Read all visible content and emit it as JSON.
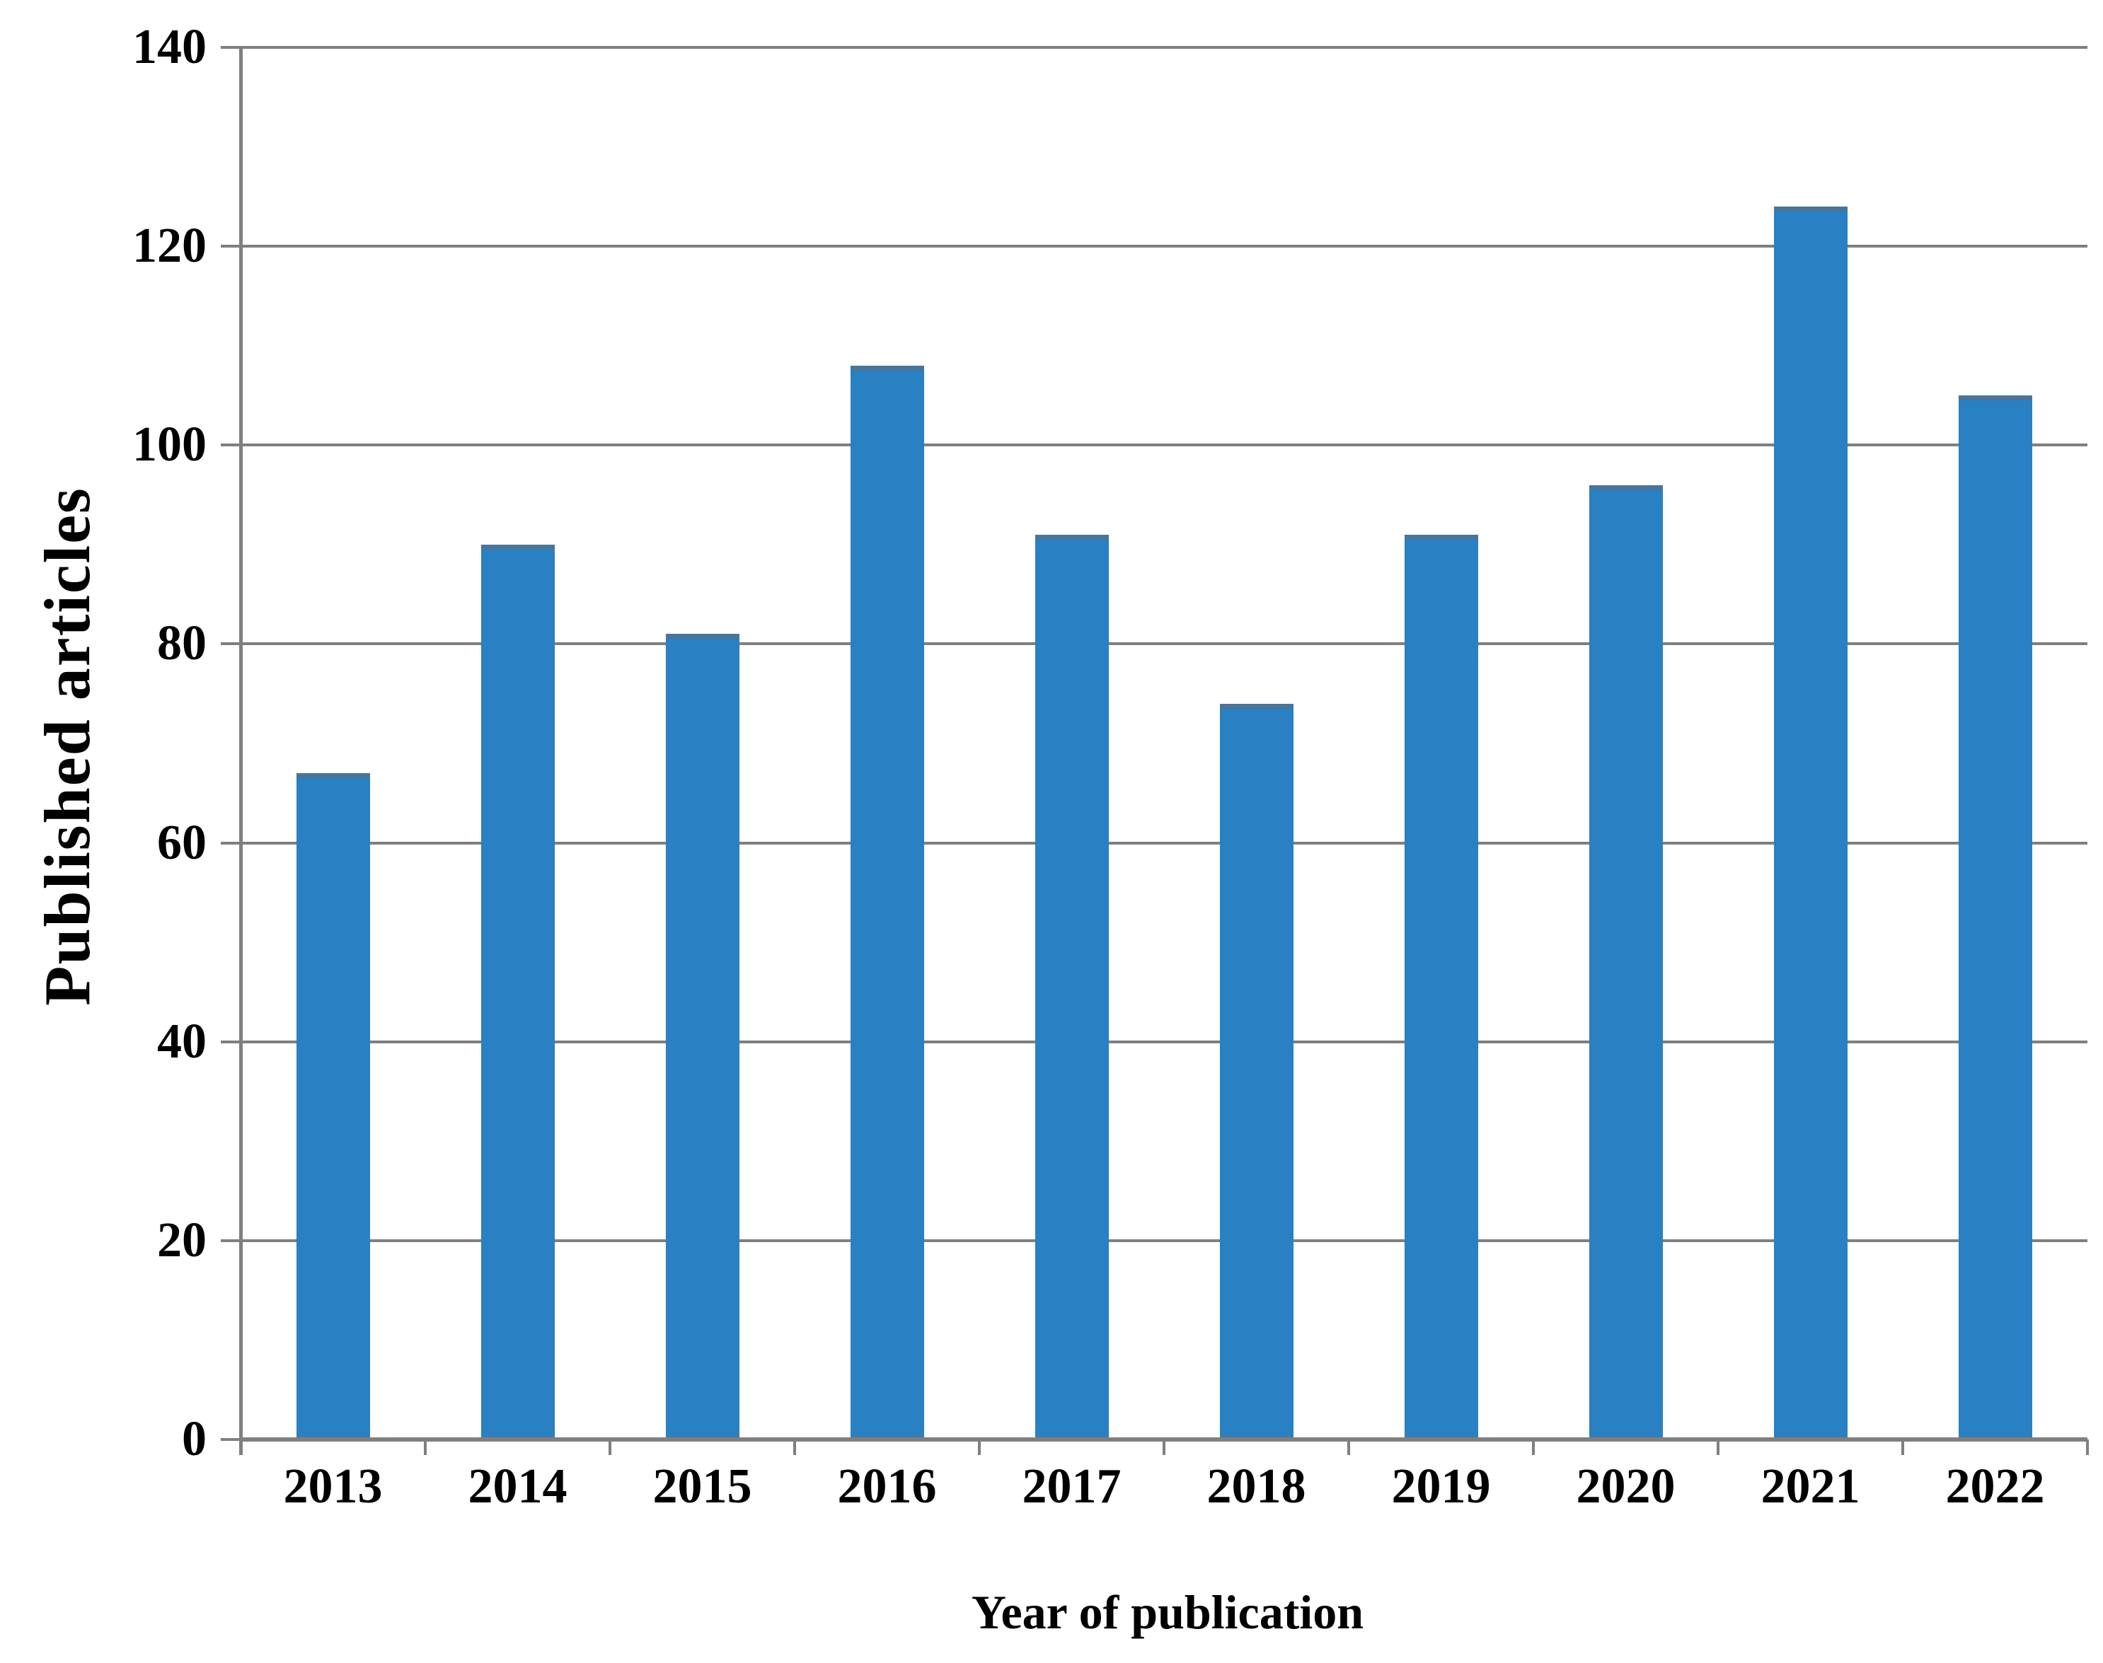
{
  "chart_data": {
    "type": "bar",
    "title": "",
    "categories": [
      "2013",
      "2014",
      "2015",
      "2016",
      "2017",
      "2018",
      "2019",
      "2020",
      "2021",
      "2022"
    ],
    "values": [
      67,
      90,
      81,
      108,
      91,
      74,
      91,
      96,
      124,
      105
    ],
    "xlabel": "Year of publication",
    "ylabel": "Published articles",
    "ylim": [
      0,
      140
    ],
    "y_ticks": [
      0,
      20,
      40,
      60,
      80,
      100,
      120,
      140
    ],
    "grid": "horizontal",
    "legend_position": "none",
    "bar_color": "#2980C2",
    "bar_top_edge_color": "#4F7391",
    "grid_color": "#7F7F7F",
    "text_color": "#000000",
    "background_color": "#FFFFFF"
  }
}
